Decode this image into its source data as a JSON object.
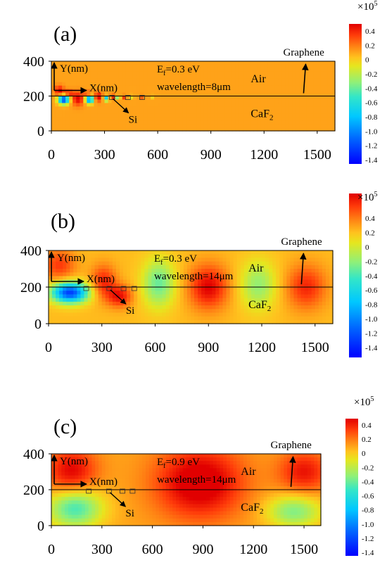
{
  "chart_data": [
    {
      "type": "heatmap",
      "panel_label": "(a)",
      "xlim": [
        0,
        1600
      ],
      "ylim": [
        0,
        400
      ],
      "x_ticks": [
        0,
        300,
        600,
        900,
        1200,
        1500
      ],
      "y_ticks": [
        0,
        200,
        400
      ],
      "interface_y": 200,
      "fermi_label": "E",
      "fermi_sub": "f",
      "fermi_value": "=0.3 eV",
      "wavelength_text": "wavelength=8μm",
      "region_top": "Air",
      "region_bottom_main": "CaF",
      "region_bottom_sub": "2",
      "graphene_label": "Graphene",
      "si_label": "Si",
      "y_axis_label": "Y(nm)",
      "x_axis_label": "X(nm)",
      "si_blocks_x": [
        340,
        430,
        510
      ],
      "colorbar": {
        "multiplier": "×10",
        "exponent": "5",
        "ticks": [
          0.4,
          0.2,
          0,
          -0.2,
          -0.4,
          -0.6,
          -0.8,
          -1.0,
          -1.2,
          -1.4
        ],
        "range": [
          -1.5,
          0.45
        ]
      },
      "field": {
        "background": 0.06,
        "lobes": [
          {
            "x": 45,
            "y": 230,
            "sx": 25,
            "sy": 28,
            "v": 0.4
          },
          {
            "x": 95,
            "y": 215,
            "sx": 28,
            "sy": 20,
            "v": 0.35
          },
          {
            "x": 70,
            "y": 180,
            "sx": 30,
            "sy": 25,
            "v": -1.4
          },
          {
            "x": 150,
            "y": 185,
            "sx": 34,
            "sy": 38,
            "v": 0.4
          },
          {
            "x": 205,
            "y": 215,
            "sx": 20,
            "sy": 14,
            "v": 0.3
          },
          {
            "x": 215,
            "y": 180,
            "sx": 22,
            "sy": 22,
            "v": -1.2
          },
          {
            "x": 265,
            "y": 195,
            "sx": 22,
            "sy": 26,
            "v": 0.4
          },
          {
            "x": 310,
            "y": 185,
            "sx": 15,
            "sy": 14,
            "v": -0.9
          },
          {
            "x": 345,
            "y": 195,
            "sx": 14,
            "sy": 14,
            "v": 0.35
          },
          {
            "x": 375,
            "y": 190,
            "sx": 12,
            "sy": 10,
            "v": -0.5
          },
          {
            "x": 410,
            "y": 195,
            "sx": 11,
            "sy": 10,
            "v": 0.3
          },
          {
            "x": 455,
            "y": 195,
            "sx": 10,
            "sy": 10,
            "v": -0.3
          },
          {
            "x": 510,
            "y": 195,
            "sx": 10,
            "sy": 10,
            "v": 0.2
          },
          {
            "x": 570,
            "y": 195,
            "sx": 10,
            "sy": 10,
            "v": -0.15
          }
        ]
      }
    },
    {
      "type": "heatmap",
      "panel_label": "(b)",
      "xlim": [
        0,
        1600
      ],
      "ylim": [
        0,
        400
      ],
      "x_ticks": [
        0,
        300,
        600,
        900,
        1200,
        1500
      ],
      "y_ticks": [
        0,
        200,
        400
      ],
      "interface_y": 200,
      "fermi_label": "E",
      "fermi_sub": "f",
      "fermi_value": "=0.3 eV",
      "wavelength_text": "wavelength=14μm",
      "region_top": "Air",
      "region_bottom_main": "CaF",
      "region_bottom_sub": "2",
      "graphene_label": "Graphene",
      "si_label": "Si",
      "y_axis_label": "Y(nm)",
      "x_axis_label": "X(nm)",
      "si_blocks_x": [
        210,
        340,
        420,
        480
      ],
      "colorbar": {
        "multiplier": "×10",
        "exponent": "5",
        "ticks": [
          0.4,
          0.2,
          0,
          -0.2,
          -0.4,
          -0.6,
          -0.8,
          -1.0,
          -1.2,
          -1.4
        ],
        "range": [
          -1.5,
          0.45
        ]
      },
      "field": {
        "background": 0.0,
        "lobes": [
          {
            "x": 60,
            "y": 320,
            "sx": 90,
            "sy": 90,
            "v": 0.3
          },
          {
            "x": 120,
            "y": 170,
            "sx": 100,
            "sy": 55,
            "v": -1.3
          },
          {
            "x": 310,
            "y": 230,
            "sx": 70,
            "sy": 90,
            "v": 0.35
          },
          {
            "x": 400,
            "y": 150,
            "sx": 70,
            "sy": 60,
            "v": 0.4
          },
          {
            "x": 620,
            "y": 220,
            "sx": 90,
            "sy": 130,
            "v": -0.45
          },
          {
            "x": 900,
            "y": 200,
            "sx": 110,
            "sy": 120,
            "v": 0.45
          },
          {
            "x": 1180,
            "y": 210,
            "sx": 100,
            "sy": 130,
            "v": -0.35
          },
          {
            "x": 1450,
            "y": 200,
            "sx": 110,
            "sy": 120,
            "v": 0.35
          }
        ]
      }
    },
    {
      "type": "heatmap",
      "panel_label": "(c)",
      "xlim": [
        0,
        1600
      ],
      "ylim": [
        0,
        400
      ],
      "x_ticks": [
        0,
        300,
        600,
        900,
        1200,
        1500
      ],
      "y_ticks": [
        0,
        200,
        400
      ],
      "interface_y": 200,
      "fermi_label": "E",
      "fermi_sub": "f",
      "fermi_value": "=0.9 eV",
      "wavelength_text": "wavelength=14μm",
      "region_top": "Air",
      "region_bottom_main": "CaF",
      "region_bottom_sub": "2",
      "graphene_label": "Graphene",
      "si_label": "Si",
      "y_axis_label": "Y(nm)",
      "x_axis_label": "X(nm)",
      "si_blocks_x": [
        220,
        340,
        420,
        480
      ],
      "colorbar": {
        "multiplier": "×10",
        "exponent": "5",
        "ticks": [
          0.4,
          0.2,
          0,
          -0.2,
          -0.4,
          -0.6,
          -0.8,
          -1.0,
          -1.2,
          -1.4
        ],
        "range": [
          -1.5,
          0.45
        ]
      },
      "field": {
        "background": 0.05,
        "lobes": [
          {
            "x": 120,
            "y": 300,
            "sx": 150,
            "sy": 140,
            "v": 0.4
          },
          {
            "x": 140,
            "y": 100,
            "sx": 160,
            "sy": 110,
            "v": -0.6
          },
          {
            "x": 880,
            "y": 240,
            "sx": 260,
            "sy": 200,
            "v": 0.5
          },
          {
            "x": 1500,
            "y": 300,
            "sx": 150,
            "sy": 120,
            "v": 0.35
          },
          {
            "x": 1440,
            "y": 80,
            "sx": 160,
            "sy": 90,
            "v": -0.45
          }
        ]
      }
    }
  ]
}
